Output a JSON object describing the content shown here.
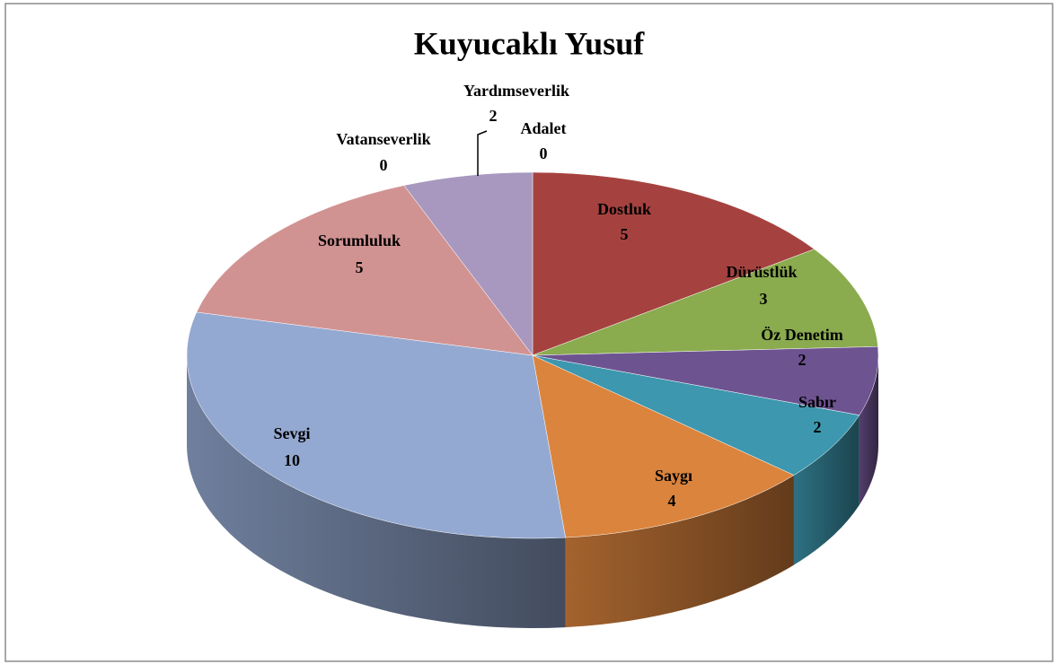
{
  "chart_data": {
    "type": "pie3d",
    "title": "Kuyucaklı Yusuf",
    "categories": [
      "Adalet",
      "Dostluk",
      "Dürüstlük",
      "Öz Denetim",
      "Sabır",
      "Saygı",
      "Sevgi",
      "Sorumluluk",
      "Vatanseverlik",
      "Yardımseverlik"
    ],
    "values": [
      0,
      5,
      3,
      2,
      2,
      4,
      10,
      5,
      0,
      2
    ],
    "colors": [
      "#4a7ebb",
      "#a5423f",
      "#8aab4e",
      "#6e5391",
      "#3d97ae",
      "#db843d",
      "#94a9d1",
      "#d19392",
      "#b9cd96",
      "#a898bf"
    ]
  }
}
